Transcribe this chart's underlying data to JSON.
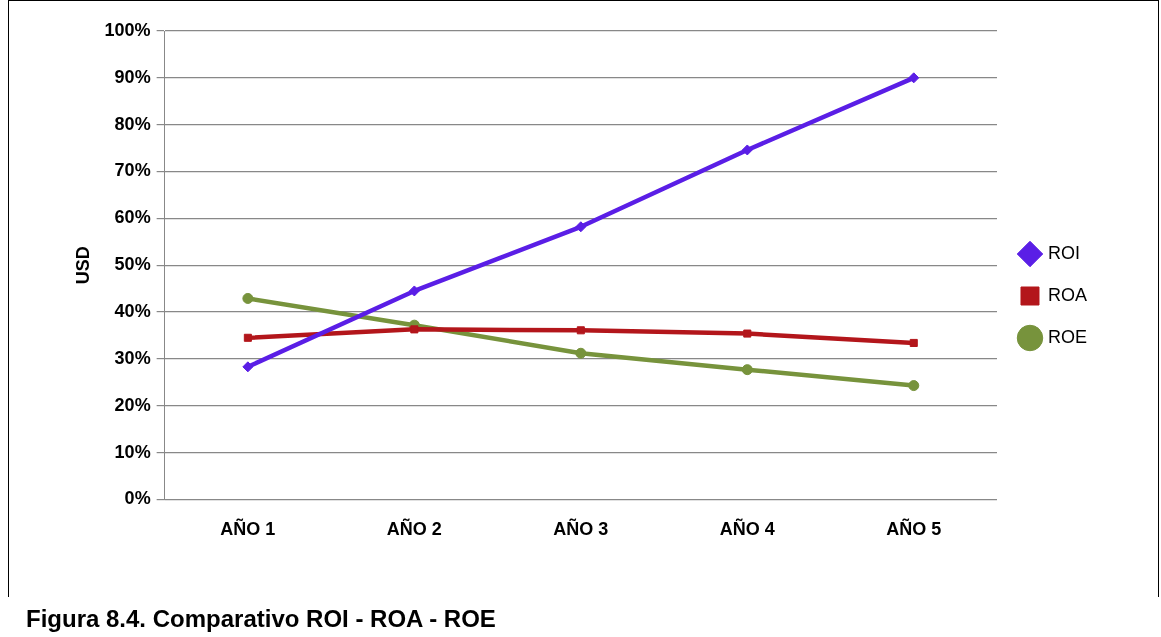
{
  "chart_data": {
    "type": "line",
    "title": "Figura 8.4. Comparativo ROI - ROA - ROE",
    "ylabel": "USD",
    "categories": [
      "AÑO 1",
      "AÑO 2",
      "AÑO 3",
      "AÑO 4",
      "AÑO 5"
    ],
    "series": [
      {
        "name": "ROI",
        "color": "#5a1ee6",
        "marker": "diamond",
        "values": [
          28.3,
          44.5,
          58.2,
          74.6,
          90.0
        ]
      },
      {
        "name": "ROA",
        "color": "#b3161b",
        "marker": "square",
        "values": [
          34.5,
          36.3,
          36.1,
          35.4,
          33.4
        ]
      },
      {
        "name": "ROE",
        "color": "#77933c",
        "marker": "circle",
        "values": [
          42.9,
          37.2,
          31.2,
          27.7,
          24.3
        ]
      }
    ],
    "ylim": [
      0,
      100
    ],
    "yticks": [
      {
        "value": 0,
        "label": "0%"
      },
      {
        "value": 10,
        "label": "10%"
      },
      {
        "value": 20,
        "label": "20%"
      },
      {
        "value": 30,
        "label": "30%"
      },
      {
        "value": 40,
        "label": "40%"
      },
      {
        "value": 50,
        "label": "50%"
      },
      {
        "value": 60,
        "label": "60%"
      },
      {
        "value": 70,
        "label": "70%"
      },
      {
        "value": 80,
        "label": "80%"
      },
      {
        "value": 90,
        "label": "90%"
      },
      {
        "value": 100,
        "label": "100%"
      }
    ],
    "grid": "y",
    "legend": "right",
    "line_style": "solid"
  }
}
